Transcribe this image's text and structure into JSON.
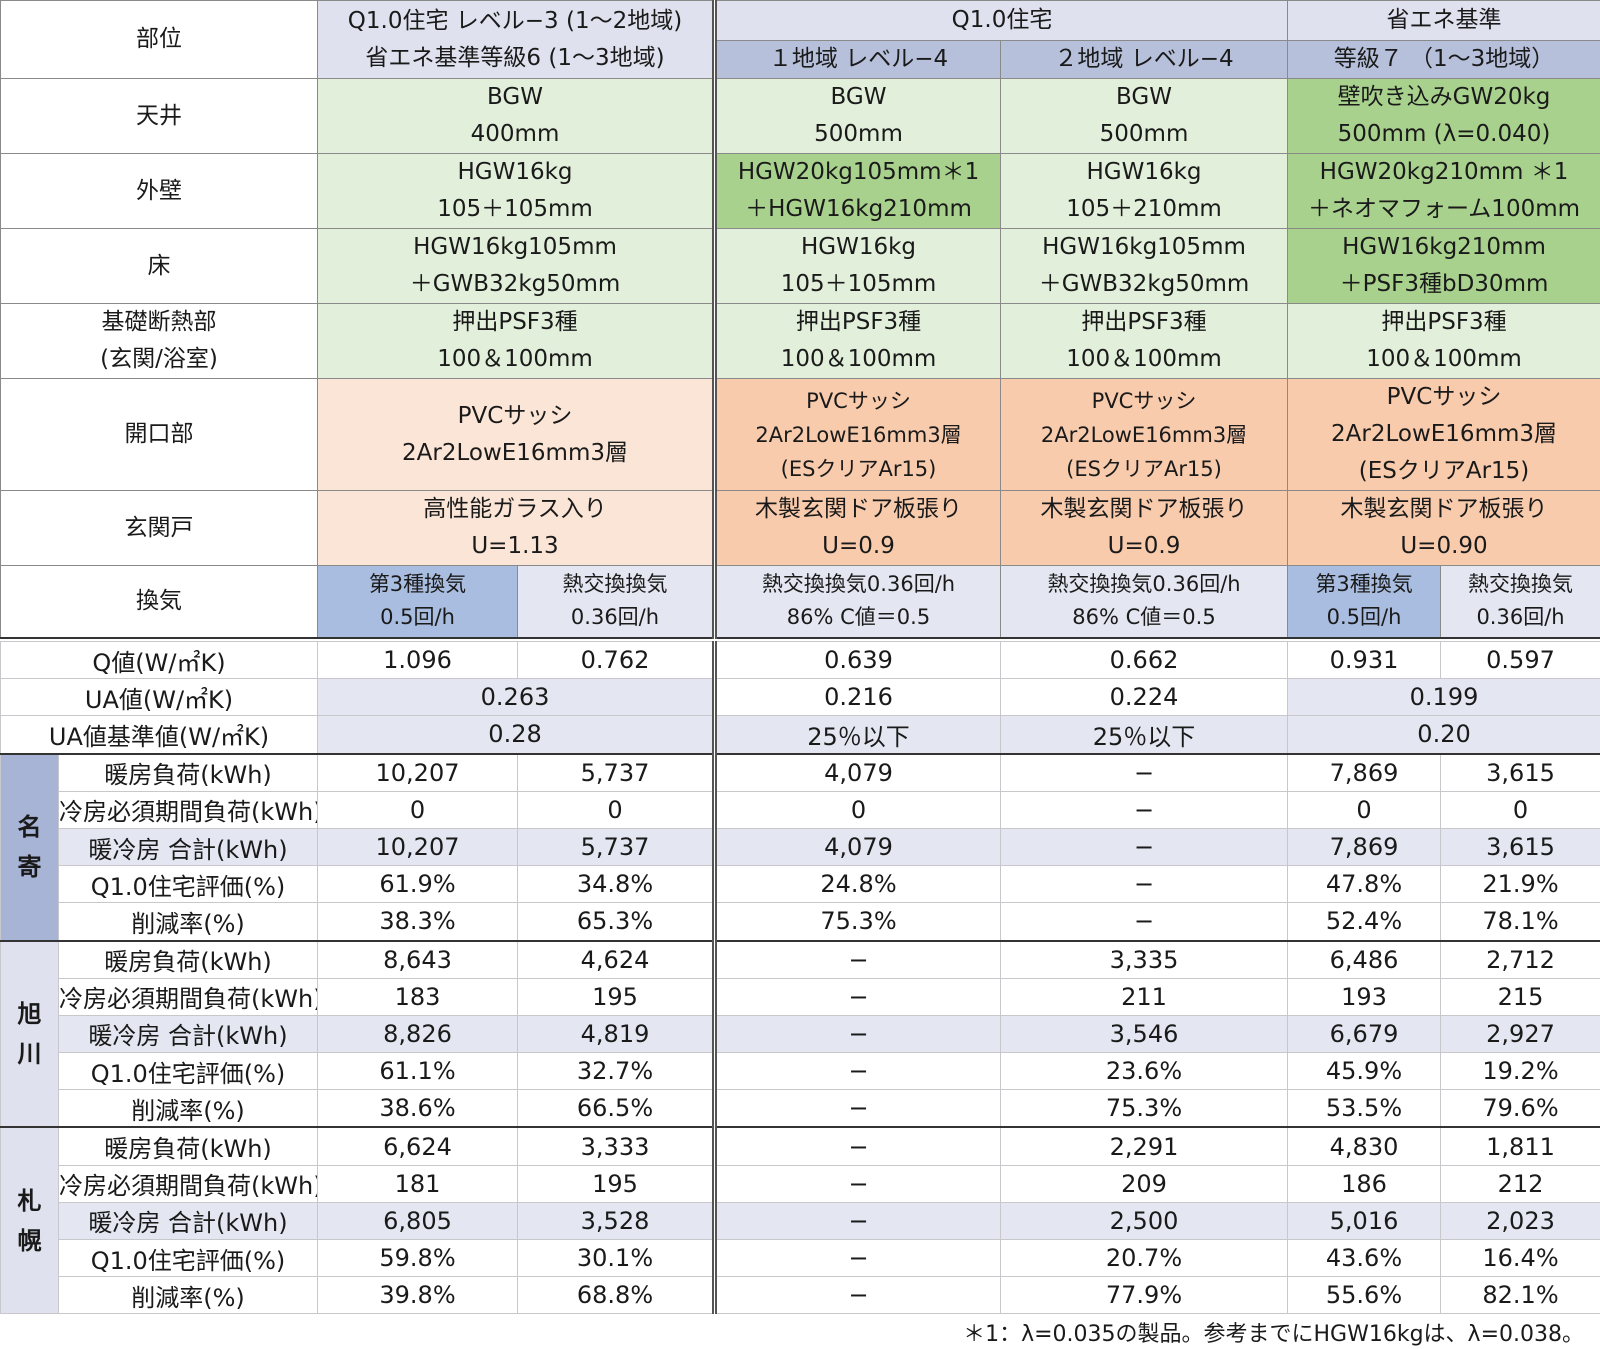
{
  "header": {
    "part": "部位",
    "q10_l3_line1": "Q1.0住宅 レベル−3 (1〜2地域)",
    "q10_l3_line2": "省エネ基準等級6 (1〜3地域)",
    "q10": "Q1.0住宅",
    "area1": "１地域 レベル−4",
    "area2": "２地域 レベル−4",
    "shoene": "省エネ基準",
    "grade7": "等級７ （1〜3地域）"
  },
  "spec_rows": {
    "ceiling": {
      "label": "天井",
      "c1": [
        "BGW",
        "400mm"
      ],
      "c2": [
        "BGW",
        "500mm"
      ],
      "c3": [
        "BGW",
        "500mm"
      ],
      "c4": [
        "壁吹き込みGW20kg",
        "500mm (λ=0.040)"
      ]
    },
    "wall": {
      "label": "外壁",
      "c1": [
        "HGW16kg",
        "105＋105mm"
      ],
      "c2": [
        "HGW20kg105mm＊1",
        "＋HGW16kg210mm"
      ],
      "c3": [
        "HGW16kg",
        "105＋210mm"
      ],
      "c4": [
        "HGW20kg210mm ＊1",
        "＋ネオマフォーム100mm"
      ]
    },
    "floor": {
      "label": "床",
      "c1": [
        "HGW16kg105mm",
        "＋GWB32kg50mm"
      ],
      "c2": [
        "HGW16kg",
        "105＋105mm"
      ],
      "c3": [
        "HGW16kg105mm",
        "＋GWB32kg50mm"
      ],
      "c4": [
        "HGW16kg210mm",
        "＋PSF3種bD30mm"
      ]
    },
    "foundation": {
      "label": [
        "基礎断熱部",
        "(玄関/浴室)"
      ],
      "c1": [
        "押出PSF3種",
        "100＆100mm"
      ],
      "c2": [
        "押出PSF3種",
        "100＆100mm"
      ],
      "c3": [
        "押出PSF3種",
        "100＆100mm"
      ],
      "c4": [
        "押出PSF3種",
        "100＆100mm"
      ]
    },
    "opening": {
      "label": "開口部",
      "c1": [
        "PVCサッシ",
        "2Ar2LowE16mm3層"
      ],
      "c2": [
        "PVCサッシ",
        "2Ar2LowE16mm3層",
        "(ESクリアAr15)"
      ],
      "c3": [
        "PVCサッシ",
        "2Ar2LowE16mm3層",
        "(ESクリアAr15)"
      ],
      "c4": [
        "PVCサッシ",
        "2Ar2LowE16mm3層",
        "(ESクリアAr15)"
      ]
    },
    "door": {
      "label": "玄関戸",
      "c1": [
        "高性能ガラス入り",
        "U=1.13"
      ],
      "c2": [
        "木製玄関ドア板張り",
        "U=0.9"
      ],
      "c3": [
        "木製玄関ドア板張り",
        "U=0.9"
      ],
      "c4": [
        "木製玄関ドア板張り",
        "U=0.90"
      ]
    },
    "vent": {
      "label": "換気",
      "c1a": [
        "第3種換気",
        "0.5回/h"
      ],
      "c1b": [
        "熱交換換気",
        "0.36回/h"
      ],
      "c2": [
        "熱交換換気0.36回/h",
        "86% C値＝0.5"
      ],
      "c3": [
        "熱交換換気0.36回/h",
        "86% C値＝0.5"
      ],
      "c4a": [
        "第3種換気",
        "0.5回/h"
      ],
      "c4b": [
        "熱交換換気",
        "0.36回/h"
      ]
    }
  },
  "perf": {
    "q": {
      "label": "Q値(W/㎡K)",
      "v": [
        "1.096",
        "0.762",
        "0.639",
        "0.662",
        "0.931",
        "0.597"
      ]
    },
    "ua": {
      "label": "UA値(W/㎡K)",
      "v": [
        "0.263",
        "0.216",
        "0.224",
        "0.199"
      ]
    },
    "ua_std": {
      "label": "UA値基準値(W/㎡K)",
      "v": [
        "0.28",
        "25％以下",
        "25％以下",
        "0.20"
      ]
    }
  },
  "row_labels": [
    "暖房負荷(kWh)",
    "冷房必須期間負荷(kWh)",
    "暖冷房 合計(kWh)",
    "Q1.0住宅評価(%)",
    "削減率(%)"
  ],
  "cities": [
    {
      "name": "名寄",
      "chars": [
        "名",
        "寄"
      ],
      "rows": [
        [
          "10,207",
          "5,737",
          "4,079",
          "−",
          "7,869",
          "3,615"
        ],
        [
          "0",
          "0",
          "0",
          "−",
          "0",
          "0"
        ],
        [
          "10,207",
          "5,737",
          "4,079",
          "−",
          "7,869",
          "3,615"
        ],
        [
          "61.9%",
          "34.8%",
          "24.8%",
          "−",
          "47.8%",
          "21.9%"
        ],
        [
          "38.3%",
          "65.3%",
          "75.3%",
          "−",
          "52.4%",
          "78.1%"
        ]
      ]
    },
    {
      "name": "旭川",
      "chars": [
        "旭",
        "川"
      ],
      "rows": [
        [
          "8,643",
          "4,624",
          "−",
          "3,335",
          "6,486",
          "2,712"
        ],
        [
          "183",
          "195",
          "−",
          "211",
          "193",
          "215"
        ],
        [
          "8,826",
          "4,819",
          "−",
          "3,546",
          "6,679",
          "2,927"
        ],
        [
          "61.1%",
          "32.7%",
          "−",
          "23.6%",
          "45.9%",
          "19.2%"
        ],
        [
          "38.6%",
          "66.5%",
          "−",
          "75.3%",
          "53.5%",
          "79.6%"
        ]
      ]
    },
    {
      "name": "札幌",
      "chars": [
        "札",
        "幌"
      ],
      "rows": [
        [
          "6,624",
          "3,333",
          "−",
          "2,291",
          "4,830",
          "1,811"
        ],
        [
          "181",
          "195",
          "−",
          "209",
          "186",
          "212"
        ],
        [
          "6,805",
          "3,528",
          "−",
          "2,500",
          "5,016",
          "2,023"
        ],
        [
          "59.8%",
          "30.1%",
          "−",
          "20.7%",
          "43.6%",
          "16.4%"
        ],
        [
          "39.8%",
          "68.8%",
          "−",
          "77.9%",
          "55.6%",
          "82.1%"
        ]
      ]
    }
  ],
  "footnote": "＊1：λ=0.035の製品。参考までにHGW16kgは、λ=0.038。"
}
